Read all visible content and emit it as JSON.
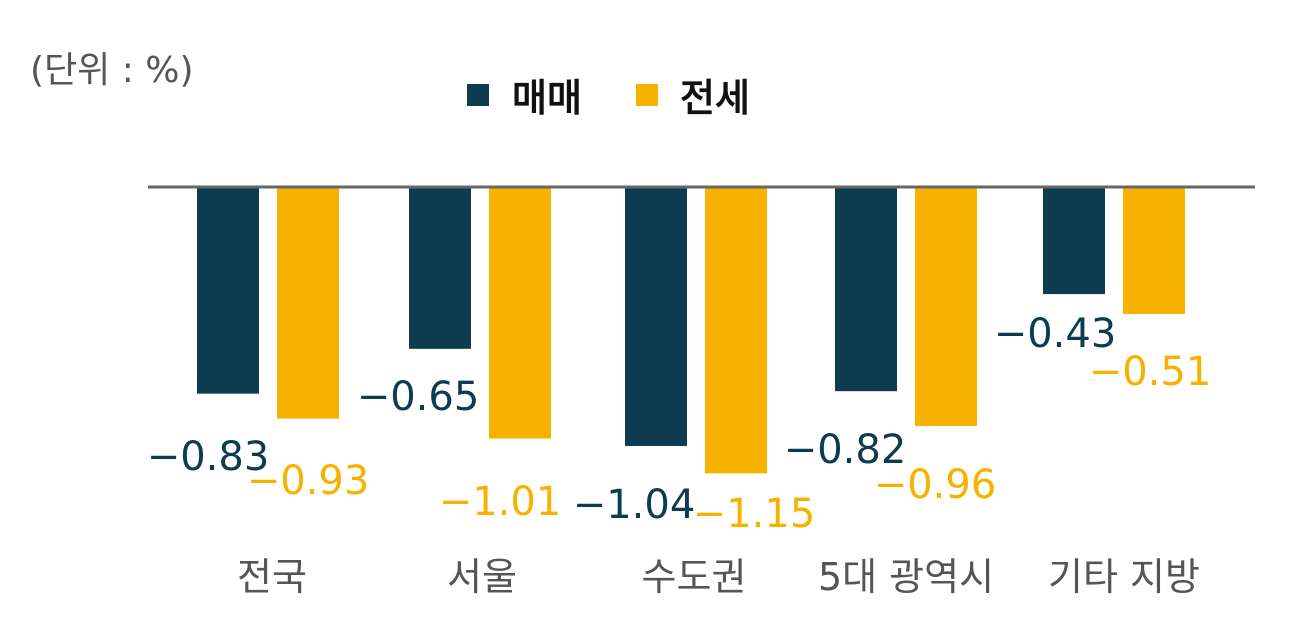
{
  "unit_label": "(단위 : %)",
  "colors": {
    "series_sale": "#0d3b4f",
    "series_jeonse": "#f7b200",
    "baseline": "#666666",
    "category_text": "#555555",
    "legend_text": "#111111"
  },
  "chart_data": {
    "type": "bar",
    "categories": [
      "전국",
      "서울",
      "수도권",
      "5대 광역시",
      "기타 지방"
    ],
    "series": [
      {
        "name": "매매",
        "values": [
          -0.83,
          -0.65,
          -1.04,
          -0.82,
          -0.43
        ]
      },
      {
        "name": "전세",
        "values": [
          -0.93,
          -1.01,
          -1.15,
          -0.96,
          -0.51
        ]
      }
    ],
    "value_labels": [
      [
        "−0.83",
        "−0.65",
        "−1.04",
        "−0.82",
        "−0.43"
      ],
      [
        "−0.93",
        "−1.01",
        "−1.15",
        "−0.96",
        "−0.51"
      ]
    ],
    "ylim": [
      -1.2,
      0
    ],
    "grid": false,
    "legend_position": "top-center"
  }
}
